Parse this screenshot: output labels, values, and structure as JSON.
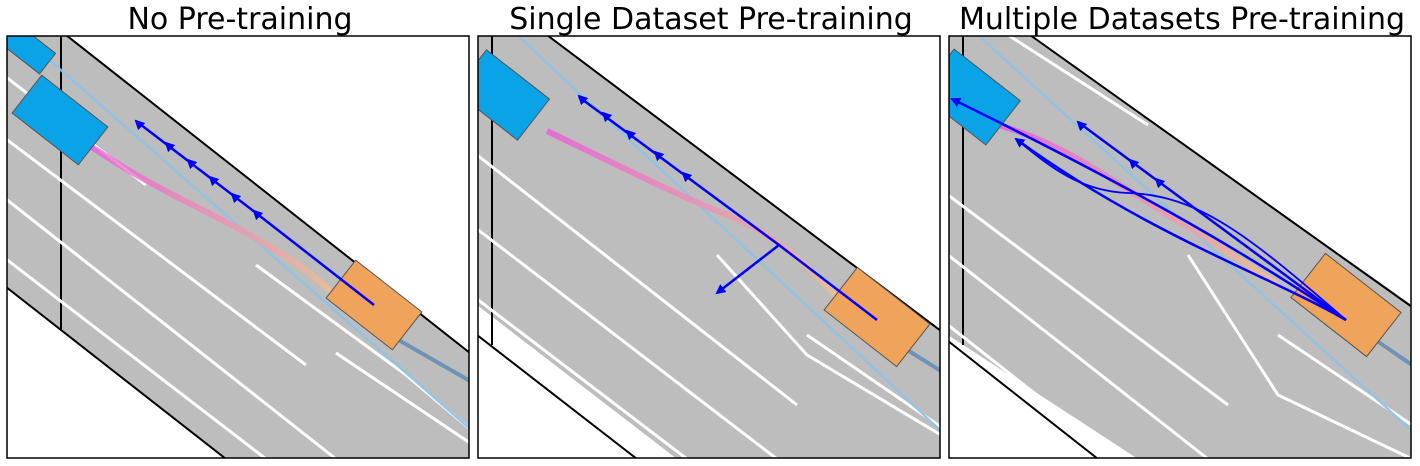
{
  "panels": [
    {
      "title": "No Pre-training"
    },
    {
      "title": "Single Dataset Pre-training"
    },
    {
      "title": "Multiple Datasets Pre-training"
    }
  ],
  "colors": {
    "road": "#bdbdbd",
    "lane_marking": "#ffffff",
    "road_edge": "#000000",
    "ego_vehicle": "#f0a35a",
    "other_vehicle": "#0aa3e8",
    "predicted_trajectory": "#0000ff",
    "ground_truth_start": "#ee55dd",
    "ground_truth_end": "#f4c08a",
    "reference_path": "#8fc3e6"
  }
}
